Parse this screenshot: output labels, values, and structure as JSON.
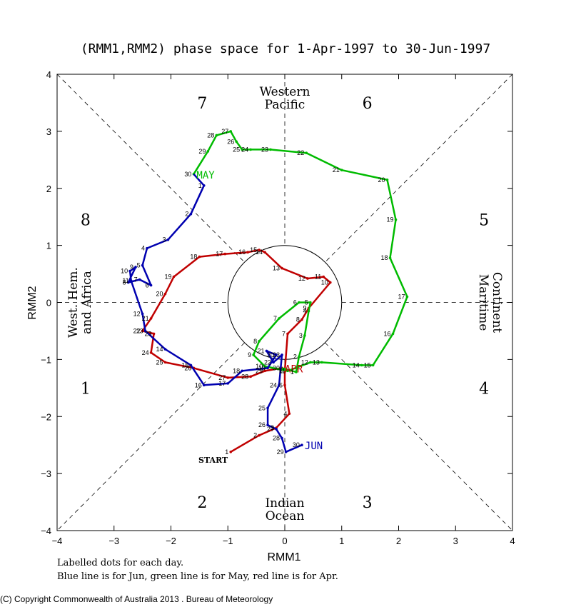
{
  "chart_data": {
    "type": "line",
    "title": "(RMM1,RMM2) phase space for  1-Apr-1997 to 30-Jun-1997",
    "xlabel": "RMM1",
    "ylabel": "RMM2",
    "xlim": [
      -4,
      4
    ],
    "ylim": [
      -4,
      4
    ],
    "x_ticks": [
      -4,
      -3,
      -2,
      -1,
      0,
      1,
      2,
      3,
      4
    ],
    "y_ticks": [
      -4,
      -3,
      -2,
      -1,
      0,
      1,
      2,
      3,
      4
    ],
    "x_tick_labels": [
      "−4",
      "−3",
      "−2",
      "−1",
      "0",
      "1",
      "2",
      "3",
      "4"
    ],
    "y_tick_labels": [
      "−4",
      "−3",
      "−2",
      "−1",
      "0",
      "1",
      "2",
      "3",
      "4"
    ],
    "unit_circle_radius": 1,
    "phases": [
      {
        "label": "1",
        "x": -3.5,
        "y": -1.5
      },
      {
        "label": "2",
        "x": -1.45,
        "y": -3.5
      },
      {
        "label": "3",
        "x": 1.45,
        "y": -3.5
      },
      {
        "label": "4",
        "x": 3.5,
        "y": -1.5
      },
      {
        "label": "5",
        "x": 3.5,
        "y": 1.45
      },
      {
        "label": "6",
        "x": 1.45,
        "y": 3.5
      },
      {
        "label": "7",
        "x": -1.45,
        "y": 3.5
      },
      {
        "label": "8",
        "x": -3.5,
        "y": 1.45
      }
    ],
    "region_labels": {
      "top": [
        "Western",
        "Pacific"
      ],
      "bottom": [
        "Indian",
        "Ocean"
      ],
      "left": [
        "West. Hem.",
        "and Africa"
      ],
      "right": [
        "Maritime",
        "Continent"
      ]
    },
    "start_label": "START",
    "series": [
      {
        "name": "Apr",
        "color": "#c00000",
        "end_label": "APR",
        "points": [
          {
            "day": 1,
            "x": -0.95,
            "y": -2.62
          },
          {
            "day": 2,
            "x": -0.45,
            "y": -2.33
          },
          {
            "day": 3,
            "x": -0.15,
            "y": -2.2
          },
          {
            "day": 4,
            "x": 0.08,
            "y": -1.95
          },
          {
            "day": 5,
            "x": 0.0,
            "y": -1.45
          },
          {
            "day": 6,
            "x": 0.0,
            "y": -1.2
          },
          {
            "day": 7,
            "x": 0.05,
            "y": -0.55
          },
          {
            "day": 8,
            "x": 0.3,
            "y": -0.3
          },
          {
            "day": 9,
            "x": 0.42,
            "y": -0.1
          },
          {
            "day": 10,
            "x": 0.8,
            "y": 0.35
          },
          {
            "day": 11,
            "x": 0.68,
            "y": 0.45
          },
          {
            "day": 12,
            "x": 0.4,
            "y": 0.42
          },
          {
            "day": 13,
            "x": -0.05,
            "y": 0.6
          },
          {
            "day": 14,
            "x": -0.35,
            "y": 0.88
          },
          {
            "day": 15,
            "x": -0.45,
            "y": 0.92
          },
          {
            "day": 16,
            "x": -0.65,
            "y": 0.88
          },
          {
            "day": 17,
            "x": -1.05,
            "y": 0.85
          },
          {
            "day": 18,
            "x": -1.5,
            "y": 0.8
          },
          {
            "day": 19,
            "x": -1.95,
            "y": 0.45
          },
          {
            "day": 20,
            "x": -2.1,
            "y": 0.15
          },
          {
            "day": 21,
            "x": -2.35,
            "y": -0.28
          },
          {
            "day": 22,
            "x": -2.5,
            "y": -0.5
          },
          {
            "day": 23,
            "x": -2.3,
            "y": -0.55
          },
          {
            "day": 24,
            "x": -2.35,
            "y": -0.88
          },
          {
            "day": 25,
            "x": -2.1,
            "y": -1.05
          },
          {
            "day": 26,
            "x": -1.6,
            "y": -1.15
          },
          {
            "day": 27,
            "x": -1.0,
            "y": -1.32
          },
          {
            "day": 28,
            "x": -0.6,
            "y": -1.3
          },
          {
            "day": 29,
            "x": -0.35,
            "y": -1.2
          },
          {
            "day": 30,
            "x": -0.05,
            "y": -1.15
          }
        ]
      },
      {
        "name": "May",
        "color": "#00bb00",
        "end_label": "MAY",
        "points": [
          {
            "day": 1,
            "x": 0.2,
            "y": -1.22
          },
          {
            "day": 2,
            "x": 0.25,
            "y": -0.95
          },
          {
            "day": 3,
            "x": 0.35,
            "y": -0.58
          },
          {
            "day": 4,
            "x": 0.42,
            "y": -0.15
          },
          {
            "day": 5,
            "x": 0.45,
            "y": 0.0
          },
          {
            "day": 6,
            "x": 0.25,
            "y": 0.0
          },
          {
            "day": 7,
            "x": -0.1,
            "y": -0.28
          },
          {
            "day": 8,
            "x": -0.45,
            "y": -0.68
          },
          {
            "day": 9,
            "x": -0.55,
            "y": -0.92
          },
          {
            "day": 10,
            "x": -0.35,
            "y": -1.12
          },
          {
            "day": 11,
            "x": 0.05,
            "y": -1.2
          },
          {
            "day": 12,
            "x": 0.45,
            "y": -1.05
          },
          {
            "day": 13,
            "x": 0.65,
            "y": -1.05
          },
          {
            "day": 14,
            "x": 1.35,
            "y": -1.1
          },
          {
            "day": 15,
            "x": 1.55,
            "y": -1.1
          },
          {
            "day": 16,
            "x": 1.9,
            "y": -0.55
          },
          {
            "day": 17,
            "x": 2.15,
            "y": 0.1
          },
          {
            "day": 18,
            "x": 1.85,
            "y": 0.78
          },
          {
            "day": 19,
            "x": 1.95,
            "y": 1.45
          },
          {
            "day": 20,
            "x": 1.8,
            "y": 2.15
          },
          {
            "day": 21,
            "x": 1.0,
            "y": 2.32
          },
          {
            "day": 22,
            "x": 0.38,
            "y": 2.62
          },
          {
            "day": 23,
            "x": -0.25,
            "y": 2.68
          },
          {
            "day": 24,
            "x": -0.6,
            "y": 2.68
          },
          {
            "day": 25,
            "x": -0.75,
            "y": 2.68
          },
          {
            "day": 26,
            "x": -0.85,
            "y": 2.82
          },
          {
            "day": 27,
            "x": -0.95,
            "y": 3.0
          },
          {
            "day": 28,
            "x": -1.2,
            "y": 2.93
          },
          {
            "day": 29,
            "x": -1.35,
            "y": 2.65
          },
          {
            "day": 30,
            "x": -1.6,
            "y": 2.25
          }
        ]
      },
      {
        "name": "Jun",
        "color": "#0000b0",
        "end_label": "JUN",
        "points": [
          {
            "day": 1,
            "x": -1.42,
            "y": 2.05
          },
          {
            "day": 2,
            "x": -1.65,
            "y": 1.55
          },
          {
            "day": 3,
            "x": -2.05,
            "y": 1.1
          },
          {
            "day": 4,
            "x": -2.42,
            "y": 0.95
          },
          {
            "day": 5,
            "x": -2.5,
            "y": 0.65
          },
          {
            "day": 6,
            "x": -2.35,
            "y": 0.3
          },
          {
            "day": 7,
            "x": -2.55,
            "y": 0.4
          },
          {
            "day": 8,
            "x": -2.75,
            "y": 0.35
          },
          {
            "day": 9,
            "x": -2.62,
            "y": 0.62
          },
          {
            "day": 10,
            "x": -2.72,
            "y": 0.55
          },
          {
            "day": 11,
            "x": -2.7,
            "y": 0.38
          },
          {
            "day": 12,
            "x": -2.5,
            "y": -0.2
          },
          {
            "day": 13,
            "x": -2.45,
            "y": -0.5
          },
          {
            "day": 14,
            "x": -2.1,
            "y": -0.82
          },
          {
            "day": 15,
            "x": -1.65,
            "y": -1.1
          },
          {
            "day": 16,
            "x": -1.42,
            "y": -1.45
          },
          {
            "day": 17,
            "x": -1.0,
            "y": -1.42
          },
          {
            "day": 18,
            "x": -0.75,
            "y": -1.2
          },
          {
            "day": 19,
            "x": -0.3,
            "y": -1.15
          },
          {
            "day": 20,
            "x": -0.15,
            "y": -0.92
          },
          {
            "day": 21,
            "x": -0.32,
            "y": -0.85
          },
          {
            "day": 22,
            "x": -0.2,
            "y": -1.05
          },
          {
            "day": 23,
            "x": -0.05,
            "y": -0.92
          },
          {
            "day": 24,
            "x": -0.1,
            "y": -1.45
          },
          {
            "day": 25,
            "x": -0.3,
            "y": -1.85
          },
          {
            "day": 26,
            "x": -0.3,
            "y": -2.15
          },
          {
            "day": 27,
            "x": -0.15,
            "y": -2.22
          },
          {
            "day": 28,
            "x": -0.05,
            "y": -2.38
          },
          {
            "day": 29,
            "x": 0.02,
            "y": -2.62
          },
          {
            "day": 30,
            "x": 0.3,
            "y": -2.5
          }
        ]
      }
    ]
  },
  "captions": {
    "line1": "Labelled dots for each day.",
    "line2": "Blue line is for Jun, green line is for May, red line is for Apr."
  },
  "copyright": "(C) Copyright Commonwealth of Australia 2013 . Bureau of Meteorology"
}
